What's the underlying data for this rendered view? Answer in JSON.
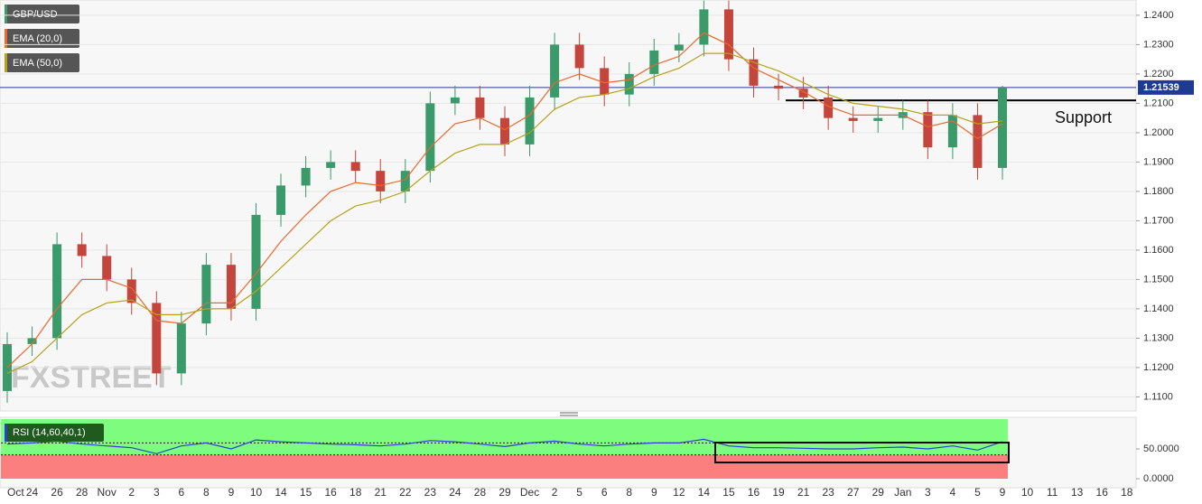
{
  "chart_data": {
    "type": "candlestick",
    "title": "GBP/USD",
    "watermark": "FXSTREET",
    "categories": [
      "Oct",
      "24",
      "26",
      "28",
      "Nov",
      "2",
      "3",
      "6",
      "8",
      "9",
      "10",
      "14",
      "15",
      "16",
      "18",
      "21",
      "22",
      "23",
      "24",
      "28",
      "29",
      "Dec",
      "2",
      "5",
      "6",
      "8",
      "9",
      "12",
      "14",
      "15",
      "16",
      "19",
      "21",
      "23",
      "27",
      "29",
      "Jan",
      "3",
      "4",
      "5",
      "9",
      "10",
      "11",
      "13",
      "16",
      "18"
    ],
    "open": [
      1.112,
      1.128,
      1.13,
      1.162,
      1.158,
      1.15,
      1.142,
      1.118,
      1.135,
      1.155,
      1.14,
      1.172,
      1.182,
      1.188,
      1.19,
      1.187,
      1.18,
      1.187,
      1.21,
      1.212,
      1.205,
      1.196,
      1.212,
      1.23,
      1.222,
      1.213,
      1.22,
      1.228,
      1.23,
      1.242,
      1.225,
      1.216,
      1.215,
      1.212,
      1.205,
      1.204,
      1.205,
      1.207,
      1.195,
      1.206,
      1.188,
      null,
      null,
      null,
      null,
      null
    ],
    "high": [
      1.132,
      1.134,
      1.166,
      1.166,
      1.162,
      1.154,
      1.146,
      1.139,
      1.159,
      1.159,
      1.176,
      1.186,
      1.192,
      1.194,
      1.194,
      1.191,
      1.191,
      1.214,
      1.216,
      1.216,
      1.209,
      1.216,
      1.234,
      1.234,
      1.226,
      1.224,
      1.232,
      1.234,
      1.245,
      1.245,
      1.229,
      1.22,
      1.219,
      1.216,
      1.209,
      1.209,
      1.211,
      1.211,
      1.21,
      1.21,
      1.216,
      null,
      null,
      null,
      null,
      null
    ],
    "low": [
      1.108,
      1.124,
      1.126,
      1.154,
      1.146,
      1.138,
      1.114,
      1.114,
      1.131,
      1.136,
      1.136,
      1.168,
      1.178,
      1.184,
      1.183,
      1.176,
      1.176,
      1.183,
      1.206,
      1.201,
      1.192,
      1.192,
      1.208,
      1.218,
      1.209,
      1.209,
      1.216,
      1.224,
      1.226,
      1.221,
      1.212,
      1.211,
      1.208,
      1.201,
      1.2,
      1.2,
      1.201,
      1.191,
      1.191,
      1.184,
      1.184,
      null,
      null,
      null,
      null,
      null
    ],
    "close": [
      1.128,
      1.13,
      1.162,
      1.158,
      1.15,
      1.142,
      1.118,
      1.135,
      1.155,
      1.14,
      1.172,
      1.182,
      1.188,
      1.19,
      1.187,
      1.18,
      1.187,
      1.21,
      1.212,
      1.205,
      1.196,
      1.212,
      1.23,
      1.222,
      1.213,
      1.22,
      1.228,
      1.23,
      1.242,
      1.225,
      1.216,
      1.215,
      1.212,
      1.205,
      1.204,
      1.205,
      1.207,
      1.195,
      1.206,
      1.188,
      1.21539,
      null,
      null,
      null,
      null,
      null
    ],
    "up_color": "#3a9a6a",
    "down_color": "#c4453c",
    "overlays": [
      {
        "name": "EMA (20,0)",
        "color": "#e8692b",
        "values": [
          1.12,
          1.128,
          1.14,
          1.15,
          1.15,
          1.147,
          1.136,
          1.135,
          1.142,
          1.142,
          1.152,
          1.163,
          1.172,
          1.18,
          1.183,
          1.182,
          1.184,
          1.195,
          1.203,
          1.205,
          1.201,
          1.206,
          1.217,
          1.22,
          1.217,
          1.218,
          1.223,
          1.226,
          1.234,
          1.23,
          1.222,
          1.218,
          1.214,
          1.209,
          1.206,
          1.206,
          1.206,
          1.202,
          1.204,
          1.198,
          1.203,
          null,
          null,
          null,
          null,
          null
        ]
      },
      {
        "name": "EMA (50,0)",
        "color": "#b8a21a",
        "values": [
          1.118,
          1.122,
          1.13,
          1.138,
          1.142,
          1.143,
          1.138,
          1.138,
          1.14,
          1.14,
          1.146,
          1.154,
          1.162,
          1.17,
          1.175,
          1.177,
          1.18,
          1.187,
          1.193,
          1.196,
          1.196,
          1.2,
          1.208,
          1.212,
          1.213,
          1.215,
          1.219,
          1.222,
          1.227,
          1.227,
          1.224,
          1.221,
          1.217,
          1.213,
          1.21,
          1.209,
          1.208,
          1.206,
          1.206,
          1.203,
          1.204,
          null,
          null,
          null,
          null,
          null
        ]
      }
    ],
    "ylim": [
      1.1052,
      1.2452
    ],
    "yticks": [
      {
        "value": 1.11,
        "label": "1.1100"
      },
      {
        "value": 1.12,
        "label": "1.1200"
      },
      {
        "value": 1.13,
        "label": "1.1300"
      },
      {
        "value": 1.14,
        "label": "1.1400"
      },
      {
        "value": 1.15,
        "label": "1.1500"
      },
      {
        "value": 1.16,
        "label": "1.1600"
      },
      {
        "value": 1.17,
        "label": "1.1700"
      },
      {
        "value": 1.18,
        "label": "1.1800"
      },
      {
        "value": 1.19,
        "label": "1.1900"
      },
      {
        "value": 1.2,
        "label": "1.2000"
      },
      {
        "value": 1.21,
        "label": "1.2100"
      },
      {
        "value": 1.22,
        "label": "1.2200"
      },
      {
        "value": 1.23,
        "label": "1.2300"
      },
      {
        "value": 1.24,
        "label": "1.2400"
      }
    ],
    "grid": true,
    "price_line": 1.21539,
    "support": {
      "label": "Support",
      "value": 1.211
    },
    "rsi": {
      "name": "RSI (14,60,40,1)",
      "color": "#2b3fd6",
      "levels": [
        60,
        40
      ],
      "ylim": [
        0,
        100
      ],
      "yticks": [
        {
          "value": 50,
          "label": "50.0000"
        },
        {
          "value": 0,
          "label": "0.0000"
        }
      ],
      "values": [
        58,
        60,
        63,
        58,
        55,
        52,
        42,
        55,
        60,
        50,
        65,
        62,
        60,
        58,
        57,
        55,
        58,
        64,
        62,
        58,
        54,
        60,
        63,
        58,
        55,
        58,
        60,
        60,
        66,
        55,
        52,
        52,
        51,
        50,
        50,
        52,
        53,
        50,
        55,
        48,
        62,
        null,
        null,
        null,
        null,
        null
      ]
    }
  }
}
